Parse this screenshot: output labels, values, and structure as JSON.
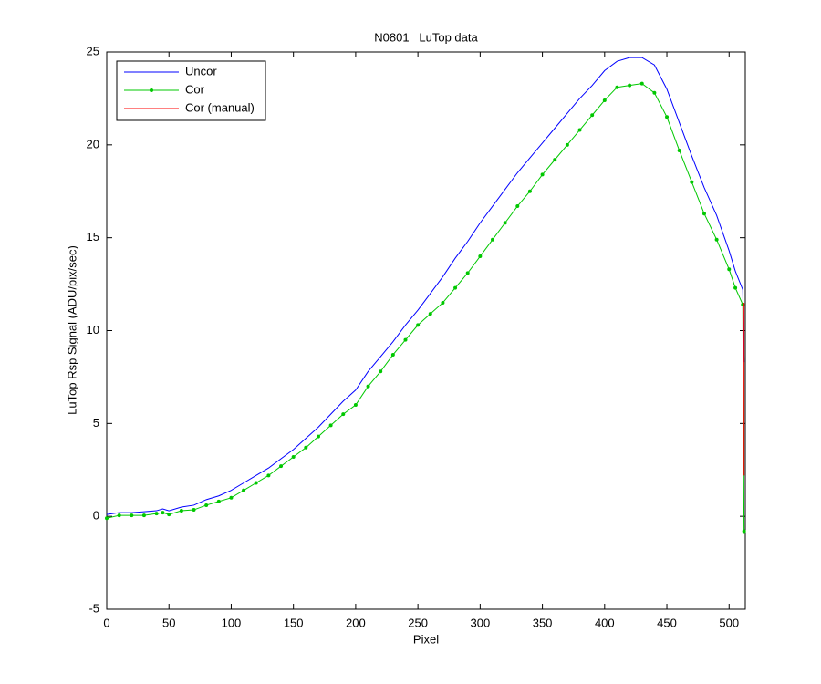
{
  "chart_data": {
    "type": "line",
    "title": "N0801   LuTop data",
    "xlabel": "Pixel",
    "ylabel": "LuTop Rsp Signal (ADU/pix/sec)",
    "xlim": [
      0,
      513
    ],
    "ylim": [
      -5,
      25
    ],
    "xticks": [
      0,
      50,
      100,
      150,
      200,
      250,
      300,
      350,
      400,
      450,
      500
    ],
    "yticks": [
      -5,
      0,
      5,
      10,
      15,
      20,
      25
    ],
    "grid": false,
    "legend": "upper-left",
    "series": [
      {
        "name": "Uncor",
        "color": "#0000ff",
        "marker": false,
        "x": [
          0,
          10,
          20,
          30,
          40,
          45,
          50,
          60,
          70,
          80,
          90,
          100,
          110,
          120,
          130,
          140,
          150,
          160,
          170,
          180,
          190,
          200,
          210,
          220,
          230,
          240,
          250,
          260,
          270,
          280,
          290,
          300,
          310,
          320,
          330,
          340,
          350,
          360,
          370,
          380,
          390,
          400,
          410,
          420,
          430,
          440,
          450,
          460,
          470,
          480,
          490,
          500,
          505,
          511,
          512
        ],
        "values": [
          0.1,
          0.2,
          0.2,
          0.25,
          0.3,
          0.4,
          0.3,
          0.5,
          0.6,
          0.9,
          1.1,
          1.4,
          1.8,
          2.2,
          2.6,
          3.1,
          3.6,
          4.2,
          4.8,
          5.5,
          6.2,
          6.8,
          7.8,
          8.6,
          9.4,
          10.3,
          11.1,
          12.0,
          12.9,
          13.9,
          14.8,
          15.8,
          16.7,
          17.6,
          18.5,
          19.3,
          20.1,
          20.9,
          21.7,
          22.5,
          23.2,
          24.0,
          24.5,
          24.7,
          24.7,
          24.3,
          23.0,
          21.2,
          19.4,
          17.7,
          16.2,
          14.3,
          13.2,
          12.2,
          8.3
        ]
      },
      {
        "name": "Cor",
        "color": "#00c800",
        "marker": true,
        "x": [
          0,
          10,
          20,
          30,
          40,
          45,
          50,
          60,
          70,
          80,
          90,
          100,
          110,
          120,
          130,
          140,
          150,
          160,
          170,
          180,
          190,
          200,
          210,
          220,
          230,
          240,
          250,
          260,
          270,
          280,
          290,
          300,
          310,
          320,
          330,
          340,
          350,
          360,
          370,
          380,
          390,
          400,
          410,
          420,
          430,
          440,
          450,
          460,
          470,
          480,
          490,
          500,
          505,
          511,
          512
        ],
        "values": [
          -0.1,
          0.05,
          0.05,
          0.05,
          0.15,
          0.2,
          0.1,
          0.3,
          0.35,
          0.6,
          0.8,
          1.0,
          1.4,
          1.8,
          2.2,
          2.7,
          3.2,
          3.7,
          4.3,
          4.9,
          5.5,
          6.0,
          7.0,
          7.8,
          8.7,
          9.5,
          10.3,
          10.9,
          11.5,
          12.3,
          13.1,
          14.0,
          14.9,
          15.8,
          16.7,
          17.5,
          18.4,
          19.2,
          20.0,
          20.8,
          21.6,
          22.4,
          23.1,
          23.2,
          23.3,
          22.8,
          21.5,
          19.7,
          18.0,
          16.3,
          14.9,
          13.3,
          12.3,
          11.4,
          -0.8
        ]
      },
      {
        "name": "Cor (manual)",
        "color": "#ff0000",
        "marker": false,
        "x": [
          512,
          512
        ],
        "values": [
          11.5,
          2.2
        ]
      }
    ]
  }
}
